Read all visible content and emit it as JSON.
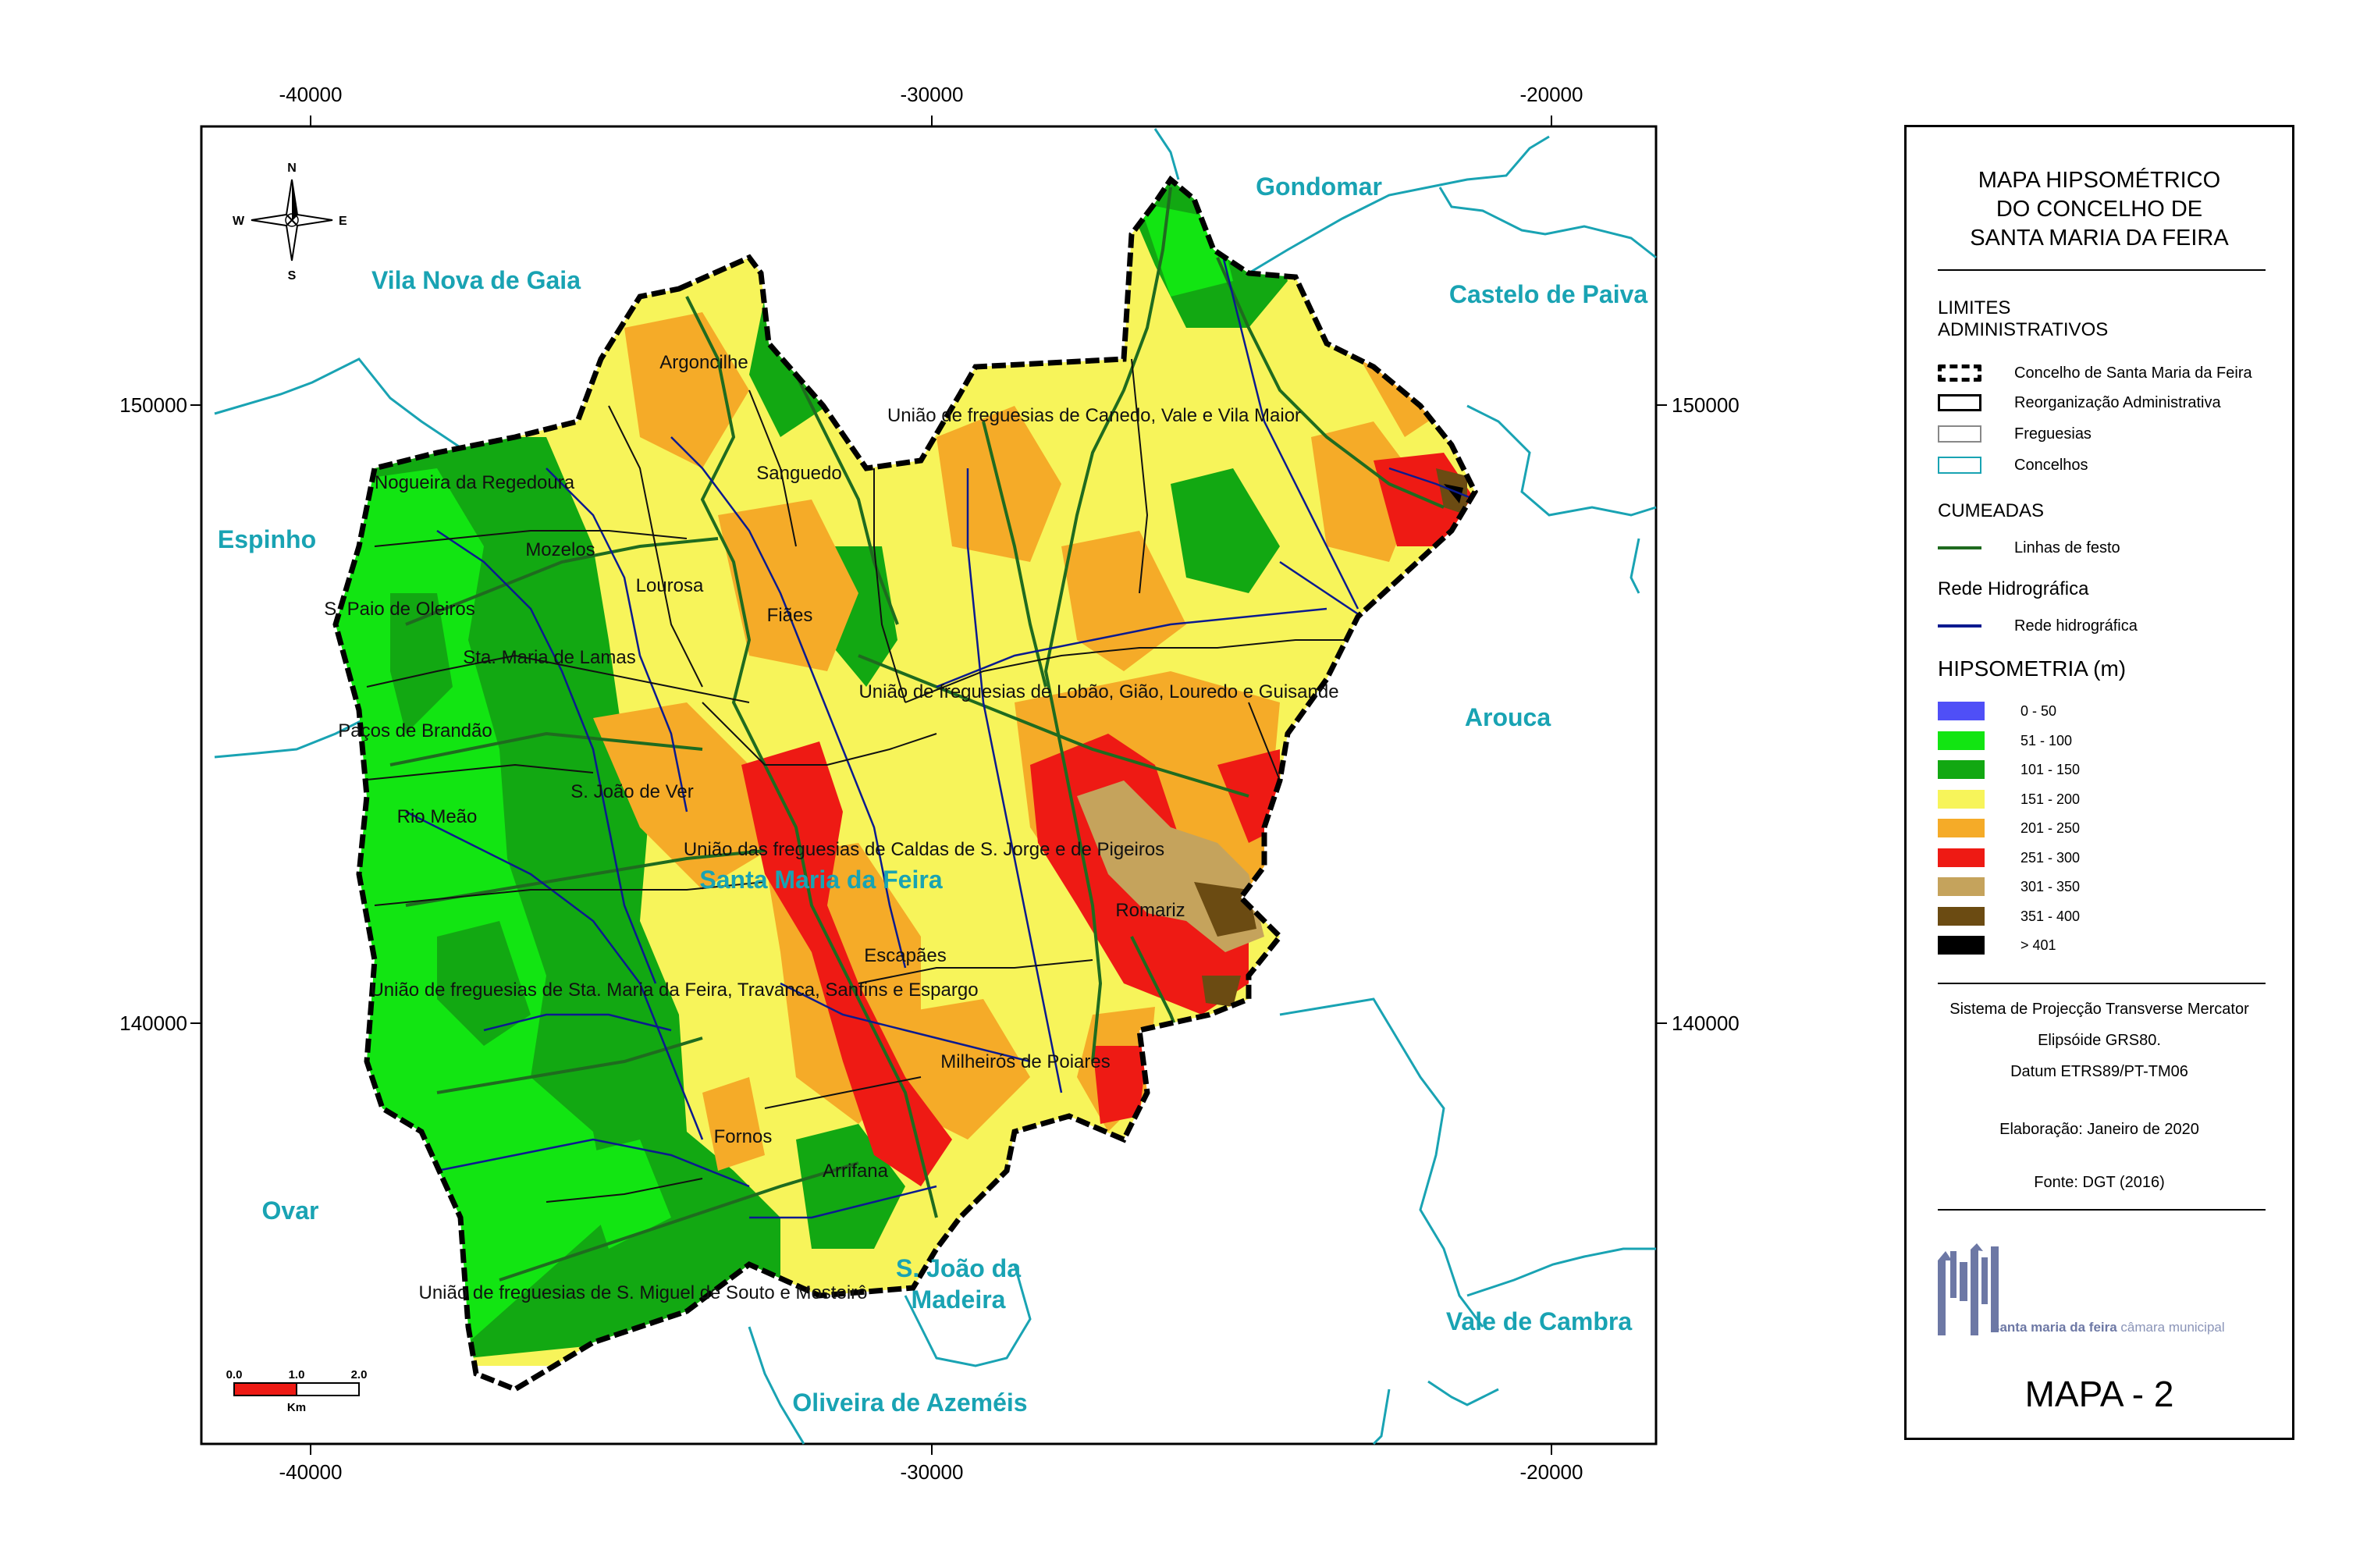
{
  "map": {
    "frame_coords": {
      "x_top": [
        "-40000",
        "-30000",
        "-20000"
      ],
      "x_bottom": [
        "-40000",
        "-30000",
        "-20000"
      ],
      "y_left": [
        "150000",
        "140000"
      ],
      "y_right": [
        "150000",
        "140000"
      ]
    },
    "compass": {
      "n": "N",
      "s": "S",
      "e": "E",
      "w": "W"
    },
    "scale_bar": {
      "labels": [
        "0.0",
        "1.0",
        "2.0"
      ],
      "unit": "Km"
    },
    "neighbour_concelhos": [
      "Gondomar",
      "Vila Nova de Gaia",
      "Castelo de Paiva",
      "Espinho",
      "Arouca",
      "Ovar",
      "S. João da",
      "Madeira",
      "Vale de Cambra",
      "Oliveira de Azeméis"
    ],
    "seat": "Santa Maria da Feira",
    "freguesias": [
      "Argoncilhe",
      "União de freguesias de Canedo, Vale e Vila Maior",
      "Sanguedo",
      "Nogueira da Regedoura",
      "Mozelos",
      "Lourosa",
      "S. Paio de Oleiros",
      "Fiães",
      "Sta. Maria de Lamas",
      "União de freguesias de Lobão, Gião, Louredo e Guisande",
      "Paços de Brandão",
      "S. João de Ver",
      "Rio Meão",
      "União das freguesias de Caldas de S. Jorge e de Pigeiros",
      "Romariz",
      "Escapães",
      "União de freguesias de Sta. Maria da Feira, Travanca, Sanfins e Espargo",
      "Milheirós de Poiares",
      "Fornos",
      "Arrifana",
      "União de freguesias de S. Miguel de Souto e Mosteirô"
    ],
    "colors": {
      "water": "#0b1a8f",
      "ridge": "#1f6b1f",
      "concelho_line": "#19a3b3",
      "hyp": [
        "#4f4ff7",
        "#12e512",
        "#12a812",
        "#f7f45a",
        "#f5ab28",
        "#ee1a14",
        "#c5a35c",
        "#6b4b12",
        "#000000"
      ]
    }
  },
  "legend": {
    "title": [
      "MAPA HIPSOMÉTRICO",
      "DO CONCELHO DE",
      "SANTA MARIA DA FEIRA"
    ],
    "limites_title": [
      "LIMITES",
      "ADMINISTRATIVOS"
    ],
    "limites_items": [
      "Concelho de Santa Maria da Feira",
      "Reorganização Administrativa",
      "Freguesias",
      "Concelhos"
    ],
    "cumeadas_title": "CUMEADAS",
    "cumeadas_item": "Linhas de festo",
    "rede_title": "Rede Hidrográfica",
    "rede_item": "Rede hidrográfica",
    "hyp_title": "HIPSOMETRIA (m)",
    "hyp_classes": [
      "0 - 50",
      "51 - 100",
      "101 - 150",
      "151 - 200",
      "201 - 250",
      "251 - 300",
      "301 - 350",
      "351 - 400",
      "> 401"
    ],
    "projection": [
      "Sistema de Projecção Transverse  Mercator",
      "Elipsóide GRS80.",
      "Datum ETRS89/PT-TM06"
    ],
    "elaboracao": "Elaboração: Janeiro de 2020",
    "fonte": "Fonte: DGT (2016)",
    "logo_text_bold": "santa maria da feira",
    "logo_text": " câmara municipal",
    "map_number": "MAPA - 2"
  }
}
